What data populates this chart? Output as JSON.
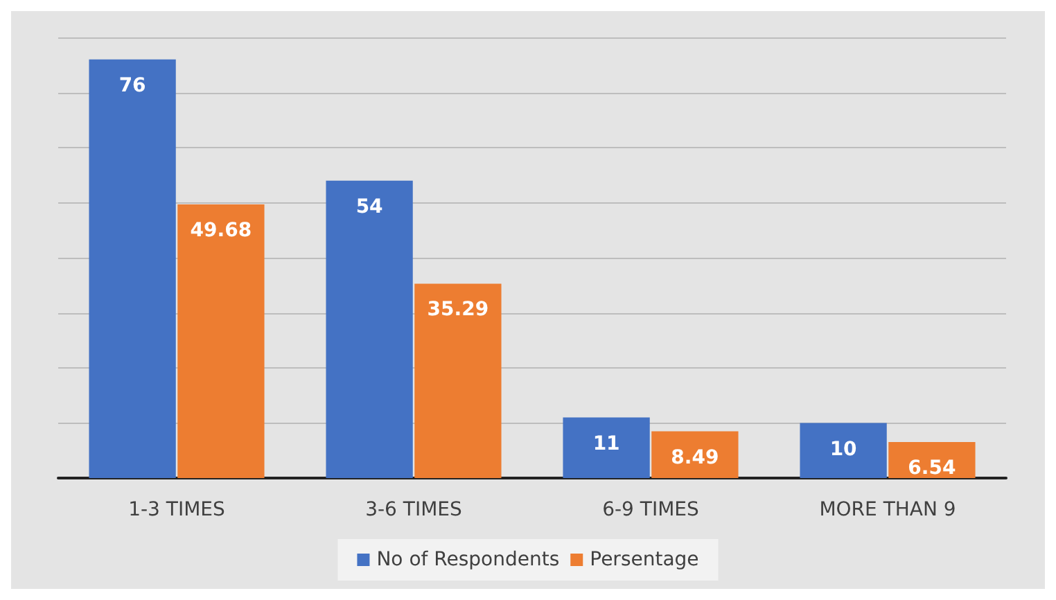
{
  "chart_data": {
    "type": "bar",
    "categories": [
      "1-3 TIMES",
      "3-6 TIMES",
      "6-9 TIMES",
      "MORE THAN 9"
    ],
    "series": [
      {
        "name": "No of Respondents",
        "color": "#4472c4",
        "values": [
          76,
          54,
          11,
          10
        ]
      },
      {
        "name": "Persentage",
        "color": "#ed7d31",
        "values": [
          49.68,
          35.29,
          8.49,
          6.54
        ]
      }
    ],
    "ylim": [
      0,
      80
    ],
    "yticks": [
      {
        "value": 0,
        "label": null
      },
      {
        "value": 10,
        "label": null
      },
      {
        "value": 20,
        "label": null
      },
      {
        "value": 30,
        "label": null
      },
      {
        "value": 40,
        "label": null
      },
      {
        "value": 50,
        "label": null
      },
      {
        "value": 60,
        "label": null
      },
      {
        "value": 70,
        "label": null
      },
      {
        "value": 80,
        "label": null
      }
    ],
    "tick_labels": "x",
    "grid": "y",
    "legend": "bottom",
    "data_labels": true
  }
}
